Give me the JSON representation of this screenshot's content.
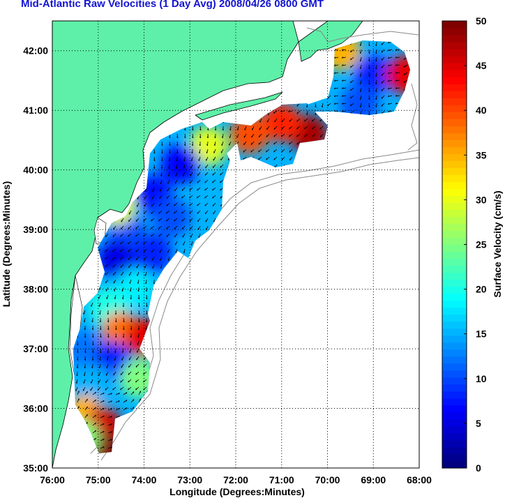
{
  "title": "Mid-Atlantic Raw Velocities (1 Day Avg) 2008/04/26 0800 GMT",
  "title_color": "#1414d2",
  "x_label": "Longitude (Degrees:Minutes)",
  "y_label": "Latitude (Degrees:Minutes)",
  "colorbar_label": "Surface Velocity (cm/s)",
  "colors": {
    "land": "#5ef0a8",
    "water": "#ffffff",
    "coastline": "#000000",
    "bathymetry": "#888888",
    "grid": "#000000"
  },
  "map": {
    "lon_range": [
      "76:00",
      "68:00"
    ],
    "lat_range": [
      "35:00",
      "42:30"
    ],
    "lon_ticks": [
      "76:00",
      "75:00",
      "74:00",
      "73:00",
      "72:00",
      "71:00",
      "70:00",
      "69:00",
      "68:00"
    ],
    "lat_ticks": [
      "35:00",
      "36:00",
      "37:00",
      "38:00",
      "39:00",
      "40:00",
      "41:00",
      "42:00"
    ],
    "grid": "dotted"
  },
  "colorbar": {
    "min": 0,
    "max": 50,
    "ticks": [
      "0",
      "5",
      "10",
      "15",
      "20",
      "25",
      "30",
      "35",
      "40",
      "45",
      "50"
    ],
    "colormap": "jet"
  },
  "chart_data": {
    "type": "heatmap",
    "title": "Mid-Atlantic Raw Velocities (1 Day Avg) 2008/04/26 0800 GMT",
    "xlabel": "Longitude (Degrees:Minutes)",
    "ylabel": "Latitude (Degrees:Minutes)",
    "value_label": "Surface Velocity (cm/s)",
    "xlim": [
      -76,
      -68
    ],
    "ylim": [
      35,
      42.5
    ],
    "clim": [
      0,
      50
    ],
    "velocity_regions": [
      {
        "lon": -69.0,
        "lat": 41.6,
        "speed_cm_s": 8
      },
      {
        "lon": -68.3,
        "lat": 41.6,
        "speed_cm_s": 45
      },
      {
        "lon": -69.7,
        "lat": 42.0,
        "speed_cm_s": 35
      },
      {
        "lon": -69.3,
        "lat": 41.1,
        "speed_cm_s": 10
      },
      {
        "lon": -70.4,
        "lat": 40.6,
        "speed_cm_s": 48
      },
      {
        "lon": -71.0,
        "lat": 40.8,
        "speed_cm_s": 42
      },
      {
        "lon": -71.7,
        "lat": 40.6,
        "speed_cm_s": 40
      },
      {
        "lon": -72.6,
        "lat": 40.4,
        "speed_cm_s": 30
      },
      {
        "lon": -73.2,
        "lat": 40.1,
        "speed_cm_s": 6
      },
      {
        "lon": -73.8,
        "lat": 39.6,
        "speed_cm_s": 7
      },
      {
        "lon": -73.4,
        "lat": 39.2,
        "speed_cm_s": 10
      },
      {
        "lon": -74.4,
        "lat": 39.0,
        "speed_cm_s": 10
      },
      {
        "lon": -74.6,
        "lat": 38.5,
        "speed_cm_s": 5
      },
      {
        "lon": -73.8,
        "lat": 38.6,
        "speed_cm_s": 8
      },
      {
        "lon": -74.2,
        "lat": 38.0,
        "speed_cm_s": 18
      },
      {
        "lon": -74.8,
        "lat": 37.7,
        "speed_cm_s": 20
      },
      {
        "lon": -74.5,
        "lat": 37.3,
        "speed_cm_s": 38
      },
      {
        "lon": -74.0,
        "lat": 37.2,
        "speed_cm_s": 45
      },
      {
        "lon": -75.3,
        "lat": 37.0,
        "speed_cm_s": 12
      },
      {
        "lon": -74.7,
        "lat": 36.8,
        "speed_cm_s": 8
      },
      {
        "lon": -75.1,
        "lat": 36.4,
        "speed_cm_s": 15
      },
      {
        "lon": -74.1,
        "lat": 36.5,
        "speed_cm_s": 25
      },
      {
        "lon": -75.3,
        "lat": 35.9,
        "speed_cm_s": 35
      },
      {
        "lon": -74.9,
        "lat": 35.7,
        "speed_cm_s": 46
      },
      {
        "lon": -74.9,
        "lat": 35.3,
        "speed_cm_s": 50
      },
      {
        "lon": -75.4,
        "lat": 35.5,
        "speed_cm_s": 25
      },
      {
        "lon": -74.6,
        "lat": 39.4,
        "speed_cm_s": 30
      }
    ]
  }
}
